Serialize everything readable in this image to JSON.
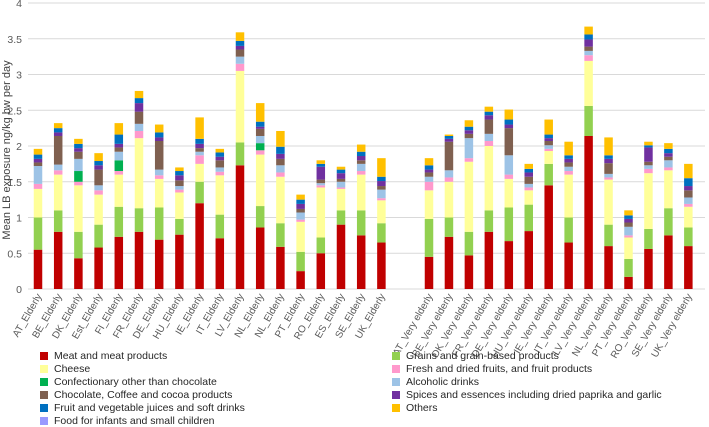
{
  "chart_data": {
    "type": "stacked-bar",
    "title": "",
    "xlabel": "",
    "ylabel": "Mean LB exposure ng/kg bw per day",
    "ylim": [
      0,
      4
    ],
    "yticks": [
      "0",
      "0.5",
      "1",
      "1.5",
      "2",
      "2.5",
      "3",
      "3.5",
      "4"
    ],
    "grid": true,
    "legend_position": "bottom",
    "groups": [
      {
        "name": "Elderly",
        "categories": [
          "AT_Elderly",
          "BE_Elderly",
          "DK_Elderly",
          "Est_Elderly",
          "FI_Elderly",
          "FR_Elderly",
          "DE_Elderly",
          "HU_Elderly",
          "IE_Elderly",
          "IT_Elderly",
          "LV_Elderly",
          "NL_Elderly",
          "NL_Elderly",
          "PT_Elderly",
          "RO_Elderly",
          "ES_Elderly",
          "SE_Elderly",
          "UK_Elderly"
        ]
      },
      {
        "name": "Very elderly",
        "categories": [
          "AT_Very elderly",
          "BE_Very elderly",
          "DK_Very elderly",
          "FR_Very elderly",
          "DE_Very elderly",
          "HU_Very elderly",
          "IE_Very elderly",
          "IT_Very elderly",
          "LV_Very elderly",
          "NL_Very elderly",
          "PT_Very elderly",
          "RO_Very elderly",
          "SE_Very elderly",
          "UK_Very elderly"
        ]
      }
    ],
    "series": [
      {
        "name": "Meat and meat products",
        "color": "#C00000",
        "values": [
          0.55,
          0.8,
          0.43,
          0.58,
          0.73,
          0.8,
          0.69,
          0.76,
          1.2,
          0.71,
          1.73,
          0.86,
          0.59,
          0.25,
          0.5,
          0.9,
          0.75,
          0.65,
          0.45,
          0.73,
          0.47,
          0.8,
          0.67,
          0.81,
          1.45,
          0.65,
          2.14,
          0.6,
          0.17,
          0.56,
          0.75,
          0.6
        ]
      },
      {
        "name": "Grains and grain-based products",
        "color": "#92D050",
        "values": [
          0.45,
          0.3,
          0.37,
          0.32,
          0.42,
          0.33,
          0.45,
          0.22,
          0.3,
          0.33,
          0.32,
          0.3,
          0.33,
          0.27,
          0.22,
          0.2,
          0.35,
          0.27,
          0.53,
          0.27,
          0.33,
          0.3,
          0.47,
          0.37,
          0.3,
          0.35,
          0.42,
          0.3,
          0.25,
          0.28,
          0.38,
          0.26
        ]
      },
      {
        "name": "Cheese",
        "color": "#FFFF99",
        "values": [
          0.4,
          0.5,
          0.65,
          0.42,
          0.45,
          0.98,
          0.4,
          0.37,
          0.25,
          0.55,
          1.0,
          0.72,
          0.65,
          0.42,
          0.7,
          0.3,
          0.5,
          0.32,
          0.4,
          0.5,
          0.98,
          0.9,
          0.4,
          0.2,
          0.18,
          0.6,
          0.63,
          0.63,
          0.3,
          0.78,
          0.53,
          0.29
        ]
      },
      {
        "name": "Fresh and dried fruits, and fruit products",
        "color": "#FF99CC",
        "values": [
          0.07,
          0.06,
          0.05,
          0.06,
          0.05,
          0.1,
          0.05,
          0.04,
          0.12,
          0.05,
          0.1,
          0.06,
          0.06,
          0.03,
          0.03,
          0.02,
          0.05,
          0.03,
          0.12,
          0.06,
          0.05,
          0.07,
          0.06,
          0.04,
          0.03,
          0.05,
          0.08,
          0.03,
          0.03,
          0.06,
          0.04,
          0.04
        ]
      },
      {
        "name": "Confectionary other than chocolate",
        "color": "#00B050",
        "values": [
          0.0,
          0.0,
          0.15,
          0.0,
          0.15,
          0.0,
          0.0,
          0.0,
          0.0,
          0.0,
          0.0,
          0.1,
          0.0,
          0.0,
          0.0,
          0.0,
          0.0,
          0.0,
          0.0,
          0.0,
          0.0,
          0.0,
          0.0,
          0.0,
          0.0,
          0.0,
          0.0,
          0.0,
          0.0,
          0.0,
          0.0,
          0.0
        ]
      },
      {
        "name": "Alcoholic drinks",
        "color": "#9DC3E6",
        "values": [
          0.25,
          0.08,
          0.17,
          0.07,
          0.12,
          0.1,
          0.08,
          0.05,
          0.05,
          0.06,
          0.1,
          0.1,
          0.1,
          0.1,
          0.03,
          0.08,
          0.1,
          0.12,
          0.07,
          0.1,
          0.28,
          0.1,
          0.27,
          0.05,
          0.05,
          0.06,
          0.06,
          0.05,
          0.12,
          0.05,
          0.1,
          0.09
        ]
      },
      {
        "name": "Chocolate, Coffee and cocoa products",
        "color": "#7F6050",
        "values": [
          0.05,
          0.4,
          0.1,
          0.22,
          0.06,
          0.17,
          0.4,
          0.08,
          0.05,
          0.1,
          0.1,
          0.1,
          0.09,
          0.05,
          0.05,
          0.04,
          0.05,
          0.05,
          0.06,
          0.4,
          0.06,
          0.2,
          0.38,
          0.1,
          0.06,
          0.06,
          0.06,
          0.15,
          0.06,
          0.05,
          0.05,
          0.1
        ]
      },
      {
        "name": "Spices and essences including dried paprika and garlic",
        "color": "#7030A0",
        "values": [
          0.05,
          0.05,
          0.05,
          0.06,
          0.05,
          0.12,
          0.05,
          0.07,
          0.06,
          0.05,
          0.05,
          0.03,
          0.07,
          0.07,
          0.18,
          0.08,
          0.06,
          0.07,
          0.04,
          0.04,
          0.05,
          0.06,
          0.05,
          0.06,
          0.04,
          0.05,
          0.1,
          0.06,
          0.05,
          0.2,
          0.05,
          0.06
        ]
      },
      {
        "name": "Fruit and vegetable juices and soft drinks",
        "color": "#0070C0",
        "values": [
          0.06,
          0.06,
          0.06,
          0.06,
          0.13,
          0.07,
          0.07,
          0.06,
          0.07,
          0.06,
          0.07,
          0.07,
          0.1,
          0.06,
          0.04,
          0.05,
          0.06,
          0.06,
          0.06,
          0.04,
          0.05,
          0.05,
          0.07,
          0.05,
          0.05,
          0.05,
          0.07,
          0.05,
          0.05,
          0.03,
          0.06,
          0.11
        ]
      },
      {
        "name": "Food for infants and small children",
        "color": "#9999FF",
        "values": [
          0.0,
          0.0,
          0.0,
          0.0,
          0.0,
          0.0,
          0.0,
          0.0,
          0.0,
          0.0,
          0.0,
          0.0,
          0.0,
          0.0,
          0.0,
          0.0,
          0.0,
          0.0,
          0.0,
          0.0,
          0.0,
          0.0,
          0.0,
          0.0,
          0.0,
          0.0,
          0.0,
          0.0,
          0.0,
          0.0,
          0.0,
          0.0
        ]
      },
      {
        "name": "Others",
        "color": "#FFC000",
        "values": [
          0.08,
          0.07,
          0.07,
          0.11,
          0.16,
          0.1,
          0.11,
          0.05,
          0.3,
          0.05,
          0.12,
          0.26,
          0.22,
          0.07,
          0.05,
          0.04,
          0.1,
          0.26,
          0.1,
          0.02,
          0.09,
          0.07,
          0.14,
          0.07,
          0.21,
          0.19,
          0.11,
          0.25,
          0.07,
          0.05,
          0.08,
          0.2
        ]
      }
    ]
  },
  "legend": {
    "items": [
      {
        "label": "Meat and meat products",
        "color": "#C00000"
      },
      {
        "label": "Grains and grain-based products",
        "color": "#92D050"
      },
      {
        "label": "Cheese",
        "color": "#FFFF99"
      },
      {
        "label": "Fresh and dried fruits, and fruit products",
        "color": "#FF99CC"
      },
      {
        "label": "Confectionary other than chocolate",
        "color": "#00B050"
      },
      {
        "label": "Alcoholic drinks",
        "color": "#9DC3E6"
      },
      {
        "label": "Chocolate, Coffee and cocoa products",
        "color": "#7F6050"
      },
      {
        "label": "Spices and essences including dried paprika and garlic",
        "color": "#7030A0"
      },
      {
        "label": "Fruit and vegetable juices and soft drinks",
        "color": "#0070C0"
      },
      {
        "label": "Others",
        "color": "#FFC000"
      },
      {
        "label": "Food for infants and small children",
        "color": "#9999FF"
      }
    ]
  }
}
